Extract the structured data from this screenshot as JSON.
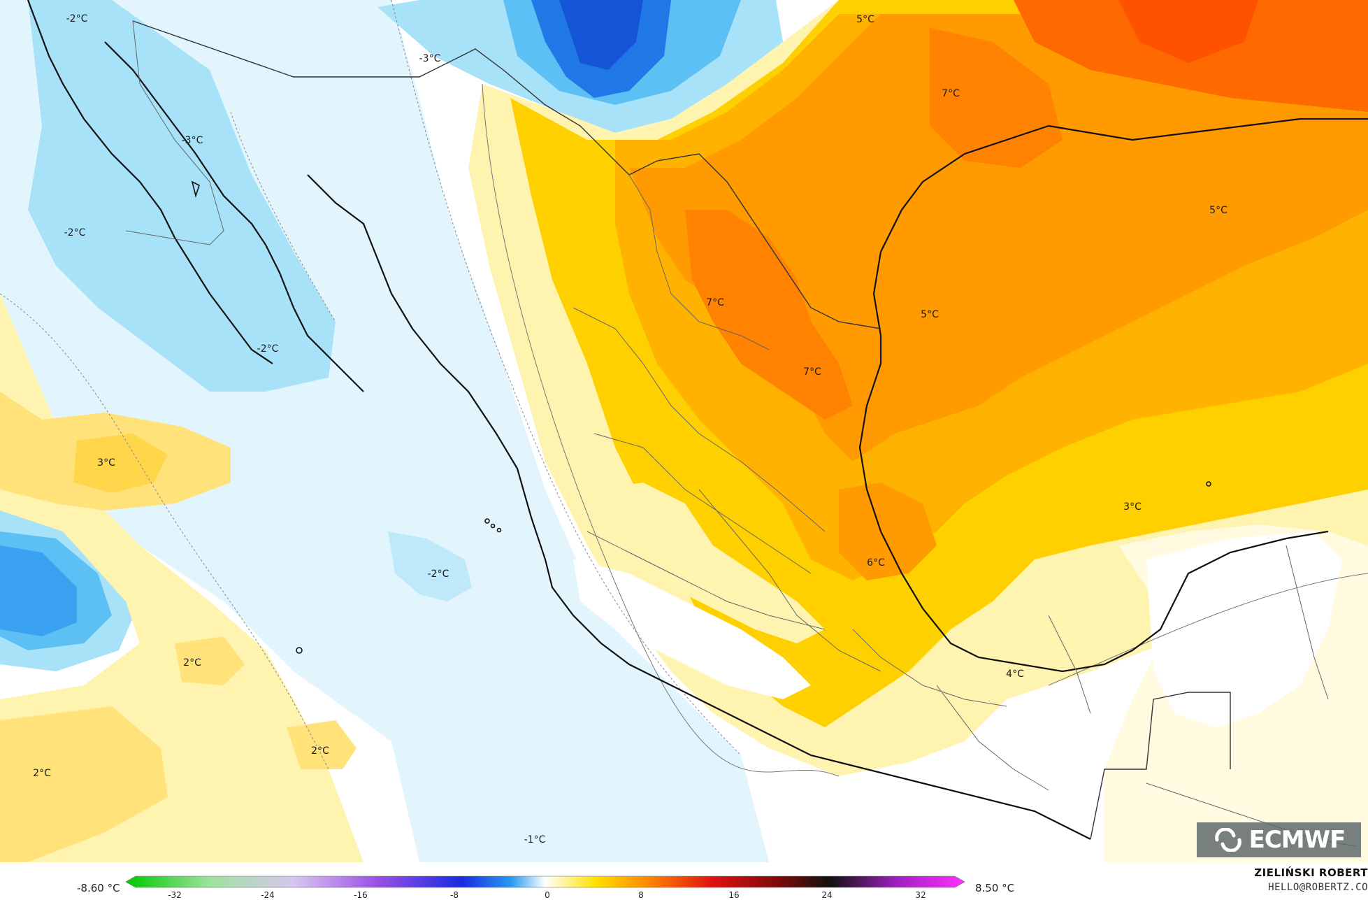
{
  "map": {
    "contour_labels": [
      "-2°C",
      "-3°C",
      "-3°C",
      "-2°C",
      "-2°C",
      "5°C",
      "7°C",
      "5°C",
      "7°C",
      "5°C",
      "7°C",
      "3°C",
      "3°C",
      "-2°C",
      "6°C",
      "2°C",
      "2°C",
      "2°C",
      "4°C",
      "-1°C"
    ],
    "colors": {
      "deep_blue": "#1565e0",
      "blue": "#3aa0f0",
      "light_blue": "#a8e2f8",
      "pale_blue": "#e3f5fc",
      "white": "#ffffff",
      "pale_yellow": "#fff3b0",
      "yellow": "#ffe27a",
      "gold": "#ffd000",
      "amber": "#ffb300",
      "orange": "#ff9a00",
      "dark_orange": "#ff7a00",
      "red_orange": "#ff5000"
    }
  },
  "legend": {
    "min_value": "-8.60 °C",
    "max_value": "8.50 °C",
    "ticks": [
      "-32",
      "-24",
      "-16",
      "-8",
      "0",
      "8",
      "16",
      "24",
      "32"
    ]
  },
  "credits": {
    "author": "ZIELIŃSKI ROBERT",
    "contact": "HELLO@ROBERTZ.CO"
  },
  "logo": {
    "text": "ECMWF",
    "icon": "ecmwf-swirl-icon"
  }
}
